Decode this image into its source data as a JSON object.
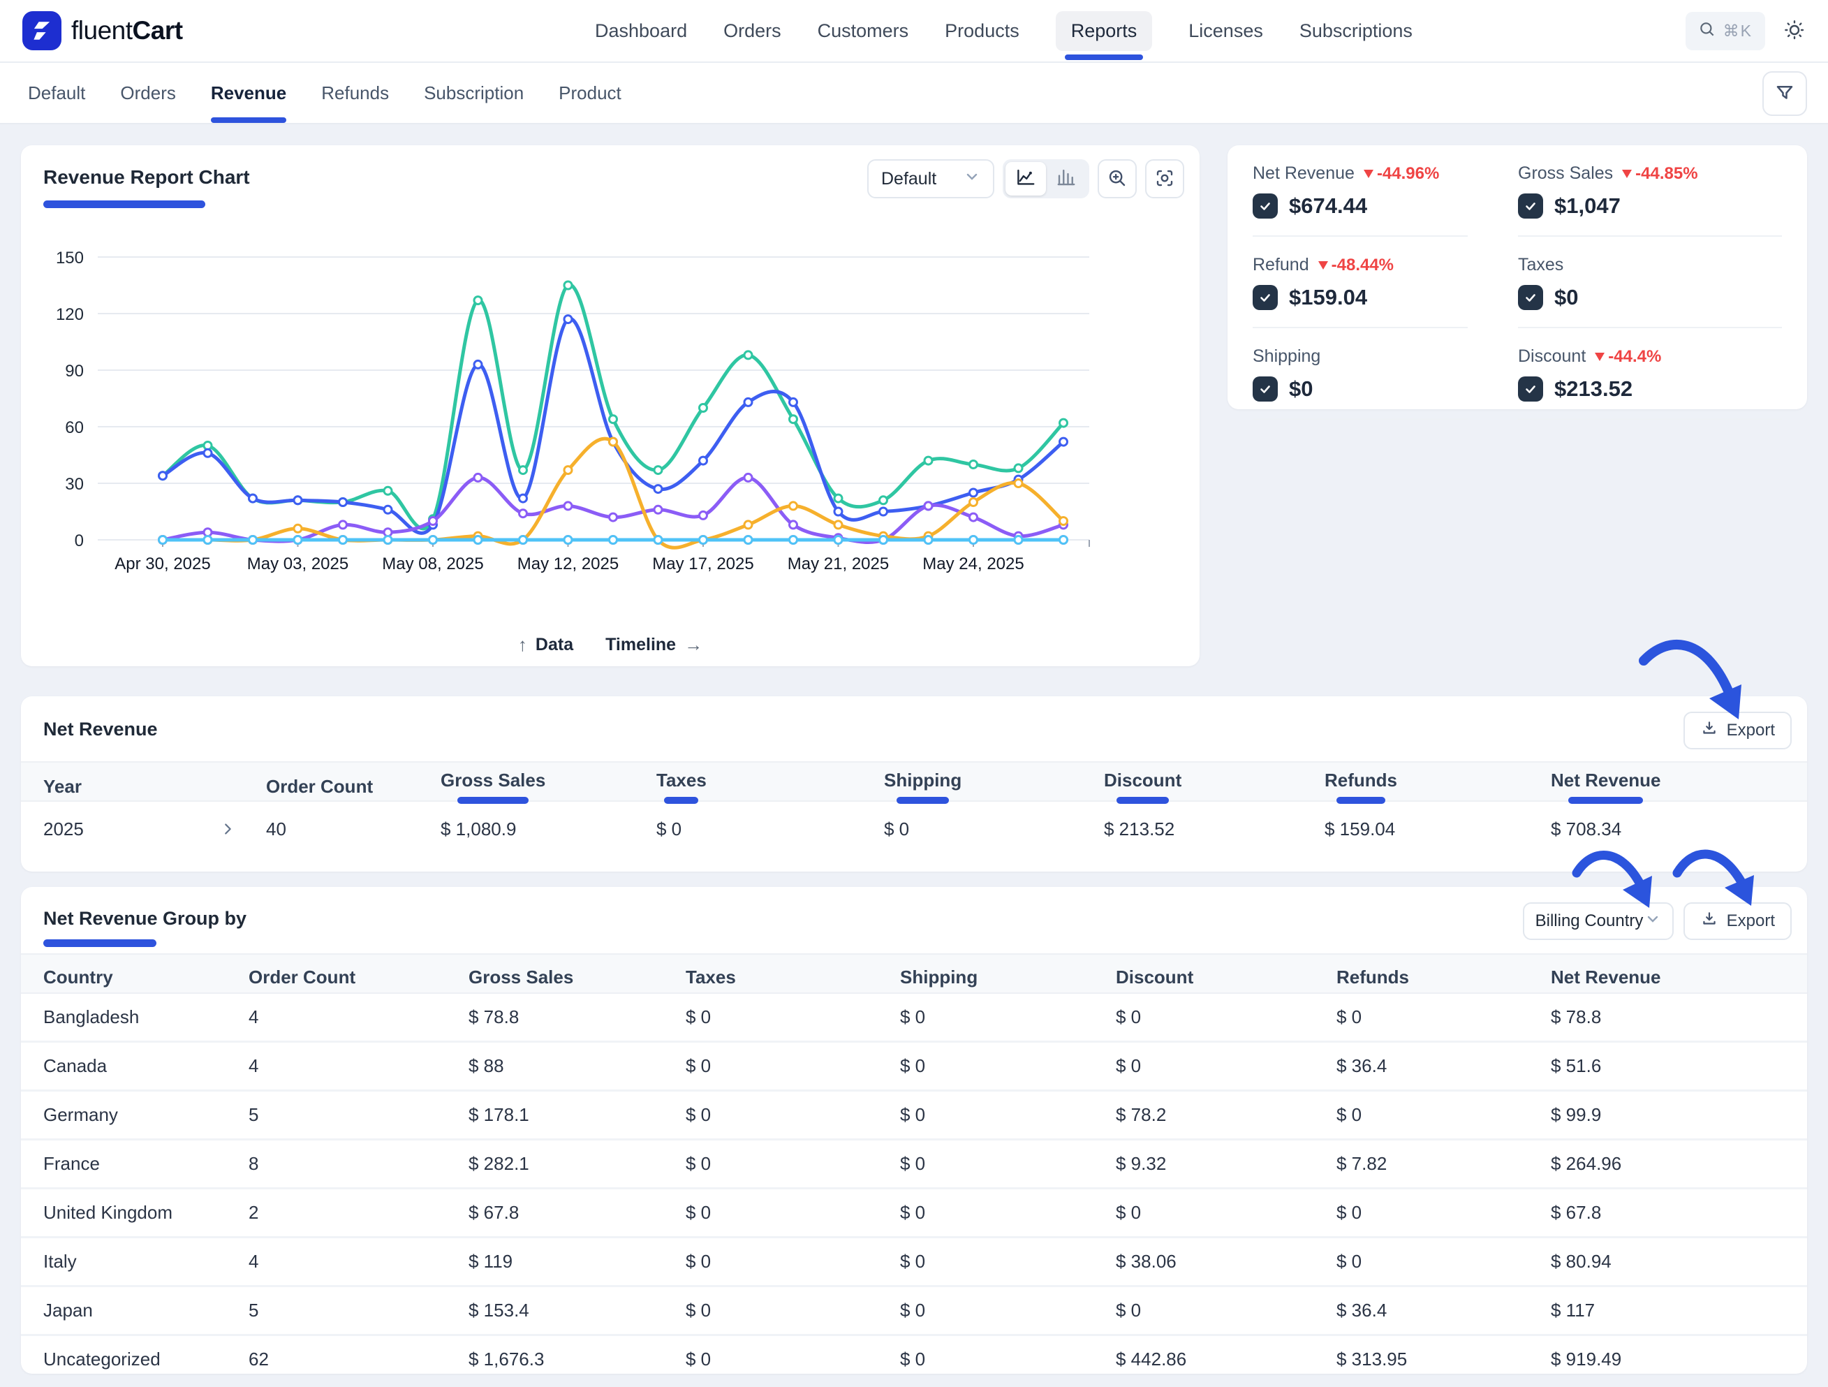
{
  "brand": {
    "name_light": "fluent",
    "name_bold": "Cart"
  },
  "nav": {
    "items": [
      "Dashboard",
      "Orders",
      "Customers",
      "Products",
      "Reports",
      "Licenses",
      "Subscriptions"
    ],
    "active": "Reports",
    "search_shortcut": "⌘K"
  },
  "tabs": {
    "items": [
      "Default",
      "Orders",
      "Revenue",
      "Refunds",
      "Subscription",
      "Product"
    ],
    "active": "Revenue"
  },
  "chart_card": {
    "title": "Revenue Report Chart",
    "range_select_value": "Default",
    "footer": {
      "data_label": "Data",
      "timeline_label": "Timeline"
    }
  },
  "chart_data": {
    "type": "line",
    "title": "Revenue Report Chart",
    "num_points": 21,
    "x_tick_labels": [
      "Apr 30, 2025",
      "May 03, 2025",
      "May 08, 2025",
      "May 12, 2025",
      "May 17, 2025",
      "May 21, 2025",
      "May 24, 2025"
    ],
    "x_tick_indices": [
      0,
      3,
      6,
      9,
      12,
      15,
      18
    ],
    "ylim": [
      0,
      150
    ],
    "yticks": [
      0,
      30,
      60,
      90,
      120,
      150
    ],
    "grid": true,
    "legend": false,
    "series": [
      {
        "name": "Gross Sales",
        "color": "#2fc6a2",
        "values": [
          34,
          50,
          22,
          21,
          20,
          26,
          11,
          127,
          37,
          135,
          64,
          37,
          70,
          98,
          64,
          22,
          21,
          42,
          40,
          38,
          62
        ]
      },
      {
        "name": "Net Revenue",
        "color": "#3d5ef1",
        "values": [
          34,
          46,
          22,
          21,
          20,
          16,
          8,
          93,
          22,
          117,
          52,
          27,
          42,
          73,
          73,
          15,
          15,
          18,
          25,
          32,
          52
        ]
      },
      {
        "name": "Discount",
        "color": "#8b5cf6",
        "values": [
          0,
          4,
          0,
          0,
          8,
          4,
          10,
          33,
          14,
          18,
          12,
          16,
          13,
          33,
          8,
          1,
          0,
          18,
          12,
          2,
          8
        ]
      },
      {
        "name": "Refunds",
        "color": "#f6b02c",
        "values": [
          0,
          0,
          0,
          6,
          0,
          0,
          0,
          2,
          0,
          37,
          52,
          0,
          0,
          8,
          18,
          8,
          2,
          2,
          20,
          30,
          10
        ]
      },
      {
        "name": "Shipping",
        "color": "#f472b6",
        "values": [
          0,
          0,
          0,
          0,
          0,
          0,
          0,
          0,
          0,
          0,
          0,
          0,
          0,
          0,
          0,
          0,
          0,
          0,
          0,
          0,
          0
        ]
      },
      {
        "name": "Taxes",
        "color": "#4fc3f7",
        "values": [
          0,
          0,
          0,
          0,
          0,
          0,
          0,
          0,
          0,
          0,
          0,
          0,
          0,
          0,
          0,
          0,
          0,
          0,
          0,
          0,
          0
        ]
      }
    ]
  },
  "stats": [
    {
      "label": "Net Revenue",
      "delta": "-44.96%",
      "value": "$674.44",
      "checked": true
    },
    {
      "label": "Gross Sales",
      "delta": "-44.85%",
      "value": "$1,047",
      "checked": true
    },
    {
      "label": "Refund",
      "delta": "-48.44%",
      "value": "$159.04",
      "checked": true
    },
    {
      "label": "Taxes",
      "delta": null,
      "value": "$0",
      "checked": true
    },
    {
      "label": "Shipping",
      "delta": null,
      "value": "$0",
      "checked": true
    },
    {
      "label": "Discount",
      "delta": "-44.4%",
      "value": "$213.52",
      "checked": true
    }
  ],
  "net_revenue_table": {
    "title": "Net Revenue",
    "export_label": "Export",
    "columns": [
      "Year",
      "Order Count",
      "Gross Sales",
      "Taxes",
      "Shipping",
      "Discount",
      "Refunds",
      "Net Revenue"
    ],
    "underlined_columns": [
      "Gross Sales",
      "Taxes",
      "Shipping",
      "Discount",
      "Refunds",
      "Net Revenue"
    ],
    "rows": [
      [
        "2025",
        "40",
        "$ 1,080.9",
        "$ 0",
        "$ 0",
        "$ 213.52",
        "$ 159.04",
        "$ 708.34"
      ]
    ]
  },
  "group_table": {
    "title": "Net Revenue Group by",
    "group_select_value": "Billing Country",
    "export_label": "Export",
    "columns": [
      "Country",
      "Order Count",
      "Gross Sales",
      "Taxes",
      "Shipping",
      "Discount",
      "Refunds",
      "Net Revenue"
    ],
    "rows": [
      [
        "Bangladesh",
        "4",
        "$ 78.8",
        "$ 0",
        "$ 0",
        "$ 0",
        "$ 0",
        "$ 78.8"
      ],
      [
        "Canada",
        "4",
        "$ 88",
        "$ 0",
        "$ 0",
        "$ 0",
        "$ 36.4",
        "$ 51.6"
      ],
      [
        "Germany",
        "5",
        "$ 178.1",
        "$ 0",
        "$ 0",
        "$ 78.2",
        "$ 0",
        "$ 99.9"
      ],
      [
        "France",
        "8",
        "$ 282.1",
        "$ 0",
        "$ 0",
        "$ 9.32",
        "$ 7.82",
        "$ 264.96"
      ],
      [
        "United Kingdom",
        "2",
        "$ 67.8",
        "$ 0",
        "$ 0",
        "$ 0",
        "$ 0",
        "$ 67.8"
      ],
      [
        "Italy",
        "4",
        "$ 119",
        "$ 0",
        "$ 0",
        "$ 38.06",
        "$ 0",
        "$ 80.94"
      ],
      [
        "Japan",
        "5",
        "$ 153.4",
        "$ 0",
        "$ 0",
        "$ 0",
        "$ 36.4",
        "$ 117"
      ],
      [
        "Uncategorized",
        "62",
        "$ 1,676.3",
        "$ 0",
        "$ 0",
        "$ 442.86",
        "$ 313.95",
        "$ 919.49"
      ]
    ]
  },
  "annotations": {
    "arrow_color": "#2b54dd",
    "arrows": [
      {
        "points_to": "net-revenue-export-button"
      },
      {
        "points_to": "billing-country-select"
      },
      {
        "points_to": "group-export-button"
      }
    ]
  }
}
